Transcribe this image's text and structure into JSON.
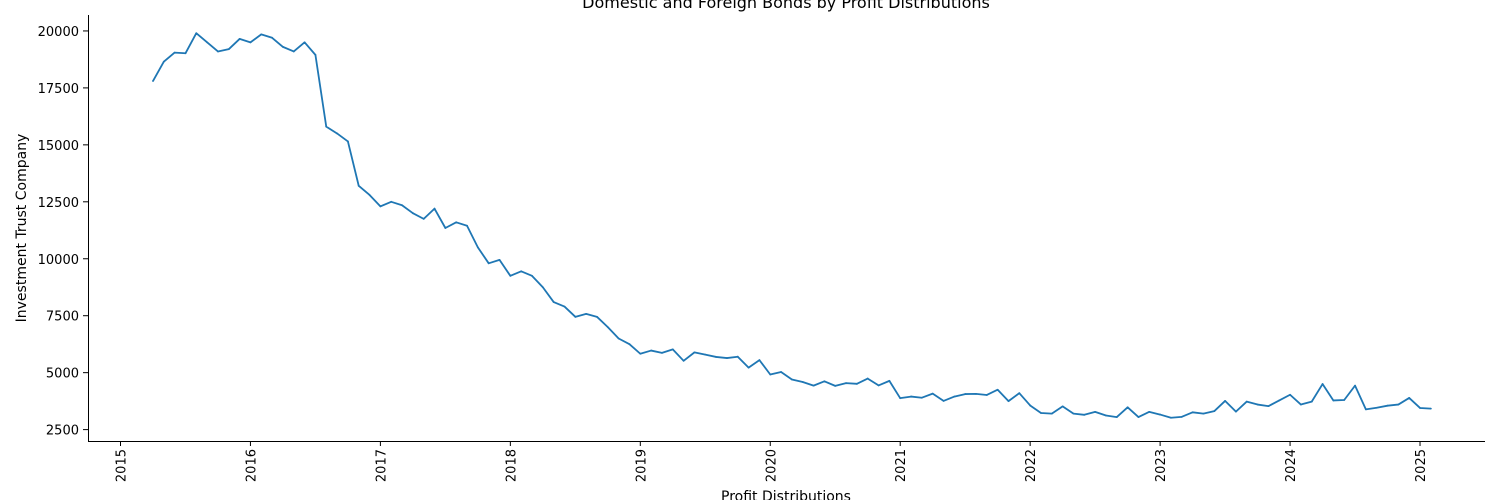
{
  "chart_data": {
    "type": "line",
    "title": "Domestic and Foreign Bonds by Profit Distributions",
    "xlabel": "Profit Distributions",
    "ylabel": "Investment Trust Company",
    "grid": false,
    "legend": "none",
    "line_color": "#1f77b4",
    "xlim": [
      "2014-10-01",
      "2025-07-01"
    ],
    "ylim": [
      2000,
      20700
    ],
    "x_ticks": [
      "2015",
      "2016",
      "2017",
      "2018",
      "2019",
      "2020",
      "2021",
      "2022",
      "2023",
      "2024",
      "2025"
    ],
    "y_ticks": [
      2500,
      5000,
      7500,
      10000,
      12500,
      15000,
      17500,
      20000
    ],
    "series": [
      {
        "x": [
          "2015-04",
          "2015-05",
          "2015-06",
          "2015-07",
          "2015-08",
          "2015-09",
          "2015-10",
          "2015-11",
          "2015-12",
          "2016-01",
          "2016-02",
          "2016-03",
          "2016-04",
          "2016-05",
          "2016-06",
          "2016-07",
          "2016-08",
          "2016-09",
          "2016-10",
          "2016-11",
          "2016-12",
          "2017-01",
          "2017-02",
          "2017-03",
          "2017-04",
          "2017-05",
          "2017-06",
          "2017-07",
          "2017-08",
          "2017-09",
          "2017-10",
          "2017-11",
          "2017-12",
          "2018-01",
          "2018-02",
          "2018-03",
          "2018-04",
          "2018-05",
          "2018-06",
          "2018-07",
          "2018-08",
          "2018-09",
          "2018-10",
          "2018-11",
          "2018-12",
          "2019-01",
          "2019-02",
          "2019-03",
          "2019-04",
          "2019-05",
          "2019-06",
          "2019-07",
          "2019-08",
          "2019-09",
          "2019-10",
          "2019-11",
          "2019-12",
          "2020-01",
          "2020-02",
          "2020-03",
          "2020-04",
          "2020-05",
          "2020-06",
          "2020-07",
          "2020-08",
          "2020-09",
          "2020-10",
          "2020-11",
          "2020-12",
          "2021-01",
          "2021-02",
          "2021-03",
          "2021-04",
          "2021-05",
          "2021-06",
          "2021-07",
          "2021-08",
          "2021-09",
          "2021-10",
          "2021-11",
          "2021-12",
          "2022-01",
          "2022-02",
          "2022-03",
          "2022-04",
          "2022-05",
          "2022-06",
          "2022-07",
          "2022-08",
          "2022-09",
          "2022-10",
          "2022-11",
          "2022-12",
          "2023-01",
          "2023-02",
          "2023-03",
          "2023-04",
          "2023-05",
          "2023-06",
          "2023-07",
          "2023-08",
          "2023-09",
          "2023-10",
          "2023-11",
          "2023-12",
          "2024-01",
          "2024-02",
          "2024-03",
          "2024-04",
          "2024-05",
          "2024-06",
          "2024-07",
          "2024-08",
          "2024-09",
          "2024-10",
          "2024-11",
          "2024-12",
          "2025-01",
          "2025-02"
        ],
        "y": [
          17800,
          18650,
          19050,
          19020,
          19900,
          19500,
          19100,
          19200,
          19650,
          19500,
          19850,
          19700,
          19300,
          19100,
          19500,
          18950,
          15800,
          15500,
          15150,
          13200,
          12800,
          12300,
          12500,
          12350,
          12000,
          11750,
          12200,
          11350,
          11600,
          11450,
          10500,
          9800,
          9950,
          9250,
          9450,
          9250,
          8750,
          8100,
          7900,
          7450,
          7580,
          7450,
          7000,
          6500,
          6250,
          5830,
          5970,
          5870,
          6020,
          5520,
          5890,
          5790,
          5690,
          5640,
          5700,
          5220,
          5550,
          4920,
          5030,
          4700,
          4590,
          4430,
          4620,
          4420,
          4540,
          4510,
          4740,
          4440,
          4640,
          3880,
          3950,
          3900,
          4080,
          3760,
          3950,
          4060,
          4070,
          4020,
          4250,
          3750,
          4100,
          3560,
          3230,
          3200,
          3520,
          3200,
          3150,
          3280,
          3120,
          3050,
          3480,
          3050,
          3280,
          3160,
          3020,
          3060,
          3260,
          3200,
          3310,
          3760,
          3290,
          3730,
          3600,
          3530,
          3780,
          4030,
          3600,
          3730,
          4500,
          3780,
          3800,
          4430,
          3390,
          3460,
          3550,
          3600,
          3890,
          3450,
          3420
        ]
      }
    ]
  }
}
